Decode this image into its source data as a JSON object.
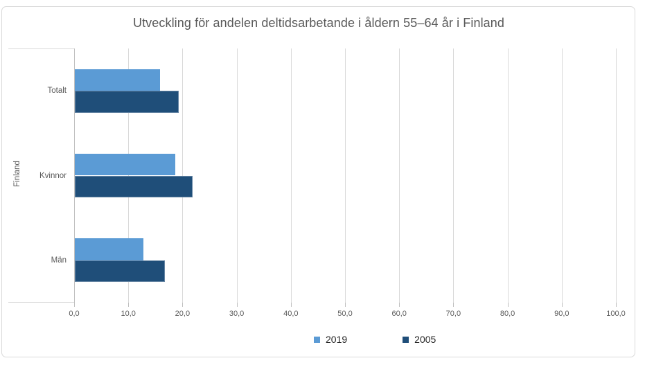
{
  "chart_data": {
    "type": "bar",
    "orientation": "horizontal",
    "title": "Utveckling för andelen deltidsarbetande i åldern 55–64 år i Finland",
    "group_label": "Finland",
    "categories": [
      "Totalt",
      "Kvinnor",
      "Män"
    ],
    "series": [
      {
        "name": "2019",
        "color": "#5B9BD5",
        "values": [
          15.7,
          18.5,
          12.6
        ]
      },
      {
        "name": "2005",
        "color": "#1F4E79",
        "values": [
          19.2,
          21.8,
          16.6
        ]
      }
    ],
    "xlim": [
      0,
      100
    ],
    "x_tick_step": 10,
    "x_tick_labels": [
      "0,0",
      "10,0",
      "20,0",
      "30,0",
      "40,0",
      "50,0",
      "60,0",
      "70,0",
      "80,0",
      "90,0",
      "100,0"
    ],
    "grid": true,
    "legend_position": "bottom",
    "colors": {
      "series_2019": "#5B9BD5",
      "series_2005": "#1F4E79",
      "gridline": "#D9D9D9",
      "axis_line": "#BFBFBF",
      "frame_border": "#D9D9D9",
      "axis_text": "#595959",
      "legend_text": "#262626",
      "title_text": "#595959"
    }
  }
}
